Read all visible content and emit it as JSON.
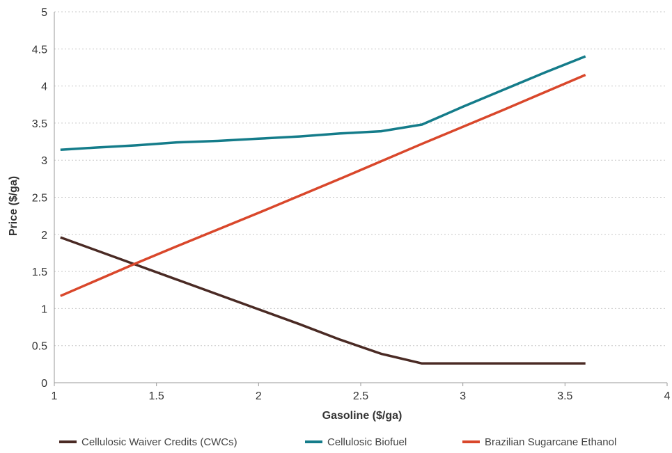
{
  "chart_data": {
    "type": "line",
    "title": "",
    "xlabel": "Gasoline ($/ga)",
    "ylabel": "Price ($/ga)",
    "xlim": [
      1,
      4
    ],
    "ylim": [
      0,
      5
    ],
    "x_ticks": [
      "1",
      "1.5",
      "2",
      "2.5",
      "3",
      "3.5",
      "4"
    ],
    "y_ticks": [
      "0",
      "0.5",
      "1",
      "1.5",
      "2",
      "2.5",
      "3",
      "3.5",
      "4",
      "4.5",
      "5"
    ],
    "grid": "horizontal dotted",
    "legend_position": "bottom",
    "series": [
      {
        "name": "Cellulosic Waiver Credits (CWCs)",
        "color": "#4a2a24",
        "points": [
          [
            1.03,
            1.96
          ],
          [
            1.4,
            1.59
          ],
          [
            1.6,
            1.39
          ],
          [
            2.0,
            0.99
          ],
          [
            2.2,
            0.79
          ],
          [
            2.4,
            0.58
          ],
          [
            2.6,
            0.39
          ],
          [
            2.8,
            0.26
          ],
          [
            3.0,
            0.26
          ],
          [
            3.2,
            0.26
          ],
          [
            3.4,
            0.26
          ],
          [
            3.6,
            0.26
          ]
        ]
      },
      {
        "name": "Cellulosic Biofuel",
        "color": "#147c8a",
        "points": [
          [
            1.03,
            3.14
          ],
          [
            1.2,
            3.17
          ],
          [
            1.4,
            3.2
          ],
          [
            1.6,
            3.24
          ],
          [
            1.8,
            3.26
          ],
          [
            2.0,
            3.29
          ],
          [
            2.2,
            3.32
          ],
          [
            2.4,
            3.36
          ],
          [
            2.6,
            3.39
          ],
          [
            2.8,
            3.48
          ],
          [
            3.0,
            3.72
          ],
          [
            3.2,
            3.95
          ],
          [
            3.4,
            4.18
          ],
          [
            3.6,
            4.4
          ]
        ]
      },
      {
        "name": "Brazilian Sugarcane Ethanol",
        "color": "#d9472b",
        "points": [
          [
            1.03,
            1.17
          ],
          [
            1.4,
            1.61
          ],
          [
            1.6,
            1.84
          ],
          [
            2.0,
            2.29
          ],
          [
            2.4,
            2.75
          ],
          [
            2.8,
            3.22
          ],
          [
            3.2,
            3.68
          ],
          [
            3.6,
            4.15
          ]
        ]
      }
    ]
  }
}
